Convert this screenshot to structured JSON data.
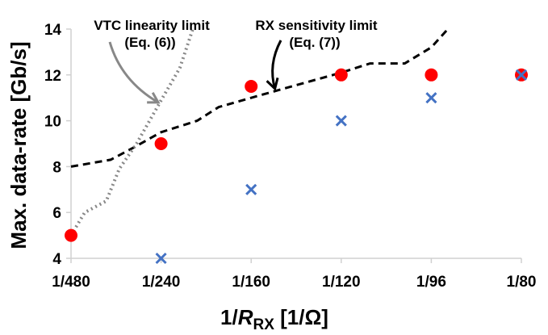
{
  "chart_data": {
    "type": "scatter",
    "xlabel_prefix": "1/",
    "xlabel_italic": "R",
    "xlabel_sub": "RX",
    "xlabel_suffix": " [1/Ω]",
    "ylabel": "Max. data-rate [Gb/s]",
    "x_tick_labels": [
      "1/480",
      "1/240",
      "1/160",
      "1/120",
      "1/96",
      "1/80"
    ],
    "x_ticks": [
      0.00208333,
      0.00416667,
      0.00625,
      0.00833333,
      0.01041667,
      0.0125
    ],
    "xlim": [
      0.00208333,
      0.0125
    ],
    "ylim": [
      4,
      14
    ],
    "y_ticks": [
      4,
      6,
      8,
      10,
      12,
      14
    ],
    "grid": false,
    "series": [
      {
        "kind": "dot",
        "color": "#ff0000",
        "points": [
          [
            0.00208333,
            5.0
          ],
          [
            0.00416667,
            9.0
          ],
          [
            0.00625,
            11.5
          ],
          [
            0.00833333,
            12.0
          ],
          [
            0.01041667,
            12.0
          ],
          [
            0.0125,
            12.0
          ]
        ]
      },
      {
        "kind": "cross",
        "color": "#4472c4",
        "points": [
          [
            0.00416667,
            4.0
          ],
          [
            0.00625,
            7.0
          ],
          [
            0.00833333,
            10.0
          ],
          [
            0.01041667,
            11.0
          ],
          [
            0.0125,
            12.0
          ]
        ]
      },
      {
        "kind": "dashed-line",
        "color": "#000000",
        "points": [
          [
            0.00208333,
            8.0
          ],
          [
            0.003,
            8.3
          ],
          [
            0.0035,
            8.8
          ],
          [
            0.00416667,
            9.5
          ],
          [
            0.005,
            10.0
          ],
          [
            0.0055,
            10.6
          ],
          [
            0.00625,
            11.0
          ],
          [
            0.007,
            11.4
          ],
          [
            0.00833333,
            12.1
          ],
          [
            0.009,
            12.5
          ],
          [
            0.0098,
            12.5
          ],
          [
            0.01041667,
            13.2
          ],
          [
            0.0108,
            14.0
          ]
        ]
      },
      {
        "kind": "dotted-line",
        "color": "#888888",
        "points": [
          [
            0.00208333,
            5.0
          ],
          [
            0.0024,
            6.0
          ],
          [
            0.0029,
            6.5
          ],
          [
            0.0032,
            7.9
          ],
          [
            0.0036,
            9.0
          ],
          [
            0.0039,
            10.0
          ],
          [
            0.0042,
            11.0
          ],
          [
            0.0046,
            12.3
          ],
          [
            0.0049,
            14.0
          ]
        ]
      }
    ],
    "annotations": [
      {
        "lines": [
          "VTC linearity limit",
          "(Eq. (6))"
        ],
        "arrow_color": "#888888",
        "target": [
          0.0041,
          10.8
        ]
      },
      {
        "lines": [
          "RX sensitivity limit",
          "(Eq. (7))"
        ],
        "arrow_color": "#000000",
        "target": [
          0.0068,
          11.4
        ]
      }
    ]
  }
}
